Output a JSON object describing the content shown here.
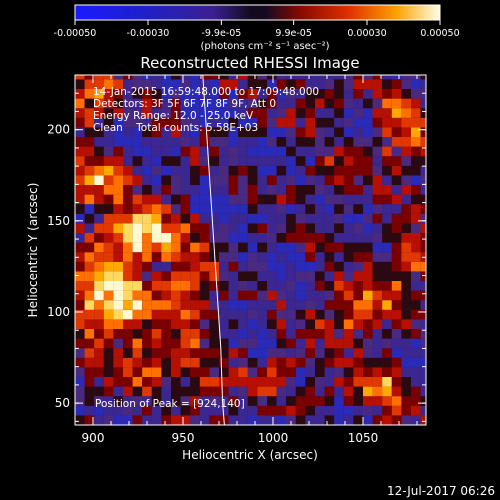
{
  "chart_data": {
    "type": "heatmap",
    "title": "Reconstructed RHESSI Image",
    "xlabel": "Heliocentric X (arcsec)",
    "ylabel": "Heliocentric Y (arcsec)",
    "xlim": [
      890,
      1085
    ],
    "ylim": [
      38,
      230
    ],
    "x_ticks": [
      900,
      950,
      1000,
      1050
    ],
    "y_ticks": [
      50,
      100,
      150,
      200
    ],
    "colorbar": {
      "range": [
        -0.0005,
        0.0005
      ],
      "ticks": [
        -0.0005,
        -0.0003,
        -9.9e-05,
        9.9e-05,
        0.0003,
        0.0005
      ],
      "tick_labels": [
        "-0.00050",
        "-0.00030",
        "-9.9e-05",
        "9.9e-05",
        "0.00030",
        "0.00050"
      ],
      "units_label": "(photons cm⁻² s⁻¹ asec⁻²)"
    },
    "info_lines": [
      "14-Jan-2015 16:59:48.000 to 17:09:48.000",
      "Detectors: 3F 5F 6F 7F 8F 9F, Att 0",
      "Energy Range: 12.0 - 25.0 keV",
      "Clean    Total counts: 5.58E+03"
    ],
    "peak_label": "Position of Peak = [924,140]",
    "peak": [
      924,
      140
    ],
    "limb": [
      [
        961,
        230
      ],
      [
        963,
        200
      ],
      [
        965,
        170
      ],
      [
        967,
        140
      ],
      [
        969,
        110
      ],
      [
        971,
        80
      ],
      [
        972,
        50
      ],
      [
        973,
        38
      ]
    ],
    "blobs": [
      {
        "x": 924,
        "y": 140,
        "sx": 14,
        "sy": 9,
        "a": 1.0
      },
      {
        "x": 905,
        "y": 105,
        "sx": 16,
        "sy": 14,
        "a": 0.9
      },
      {
        "x": 900,
        "y": 170,
        "sx": 12,
        "sy": 10,
        "a": 0.7
      },
      {
        "x": 950,
        "y": 110,
        "sx": 10,
        "sy": 18,
        "a": 0.55
      },
      {
        "x": 895,
        "y": 215,
        "sx": 10,
        "sy": 12,
        "a": 0.6
      },
      {
        "x": 930,
        "y": 70,
        "sx": 15,
        "sy": 10,
        "a": 0.55
      },
      {
        "x": 960,
        "y": 55,
        "sx": 10,
        "sy": 10,
        "a": 0.4
      },
      {
        "x": 1045,
        "y": 100,
        "sx": 14,
        "sy": 12,
        "a": 0.55
      },
      {
        "x": 1075,
        "y": 125,
        "sx": 10,
        "sy": 10,
        "a": 0.5
      },
      {
        "x": 1070,
        "y": 195,
        "sx": 10,
        "sy": 16,
        "a": 0.55
      },
      {
        "x": 1035,
        "y": 175,
        "sx": 10,
        "sy": 10,
        "a": 0.3
      },
      {
        "x": 1055,
        "y": 55,
        "sx": 14,
        "sy": 10,
        "a": 0.5
      },
      {
        "x": 1000,
        "y": 65,
        "sx": 10,
        "sy": 8,
        "a": 0.45
      },
      {
        "x": 1020,
        "y": 210,
        "sx": 10,
        "sy": 8,
        "a": 0.3
      }
    ]
  },
  "footer_date": "12-Jul-2017 06:26"
}
